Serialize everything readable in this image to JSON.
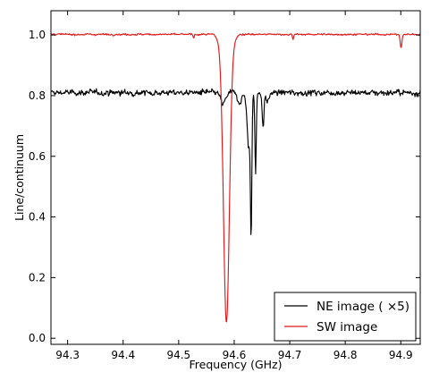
{
  "chart_data": {
    "type": "line",
    "xlabel": "Frequency (GHz)",
    "ylabel": "Line/continuum",
    "xlim": [
      94.27,
      94.935
    ],
    "ylim": [
      -0.02,
      1.08
    ],
    "xticks": [
      94.3,
      94.4,
      94.5,
      94.6,
      94.7,
      94.8,
      94.9
    ],
    "xtick_labels": [
      "94.3",
      "94.4",
      "94.5",
      "94.6",
      "94.7",
      "94.8",
      "94.9"
    ],
    "yticks": [
      0.0,
      0.2,
      0.4,
      0.6,
      0.8,
      1.0
    ],
    "ytick_labels": [
      "0.0",
      "0.2",
      "0.4",
      "0.6",
      "0.8",
      "1.0"
    ],
    "grid": false,
    "legend_position": "bottom-right",
    "series": [
      {
        "name": "NE image ( ×5)",
        "color": "#000000",
        "baseline": 0.81,
        "noise": 0.012,
        "features": [
          {
            "center": 94.58,
            "width": 0.006,
            "depth": 0.04
          },
          {
            "center": 94.61,
            "width": 0.006,
            "depth": 0.03
          },
          {
            "center": 94.626,
            "width": 0.004,
            "depth": 0.18
          },
          {
            "center": 94.6305,
            "width": 0.0018,
            "depth": 0.43
          },
          {
            "center": 94.6385,
            "width": 0.0018,
            "depth": 0.26
          },
          {
            "center": 94.652,
            "width": 0.0022,
            "depth": 0.12
          },
          {
            "center": 94.66,
            "width": 0.004,
            "depth": 0.03
          }
        ]
      },
      {
        "name": "SW image",
        "color": "#e0191b",
        "baseline": 1.002,
        "noise": 0.0035,
        "features": [
          {
            "center": 94.586,
            "width": 0.0075,
            "depth": 0.925
          },
          {
            "center": 94.527,
            "width": 0.0015,
            "depth": 0.012
          },
          {
            "center": 94.706,
            "width": 0.0015,
            "depth": 0.018
          },
          {
            "center": 94.9005,
            "width": 0.0022,
            "depth": 0.045
          }
        ],
        "flanks": [
          {
            "center": 94.586,
            "halfwidth": 0.023,
            "value": 0.975
          }
        ]
      }
    ]
  }
}
